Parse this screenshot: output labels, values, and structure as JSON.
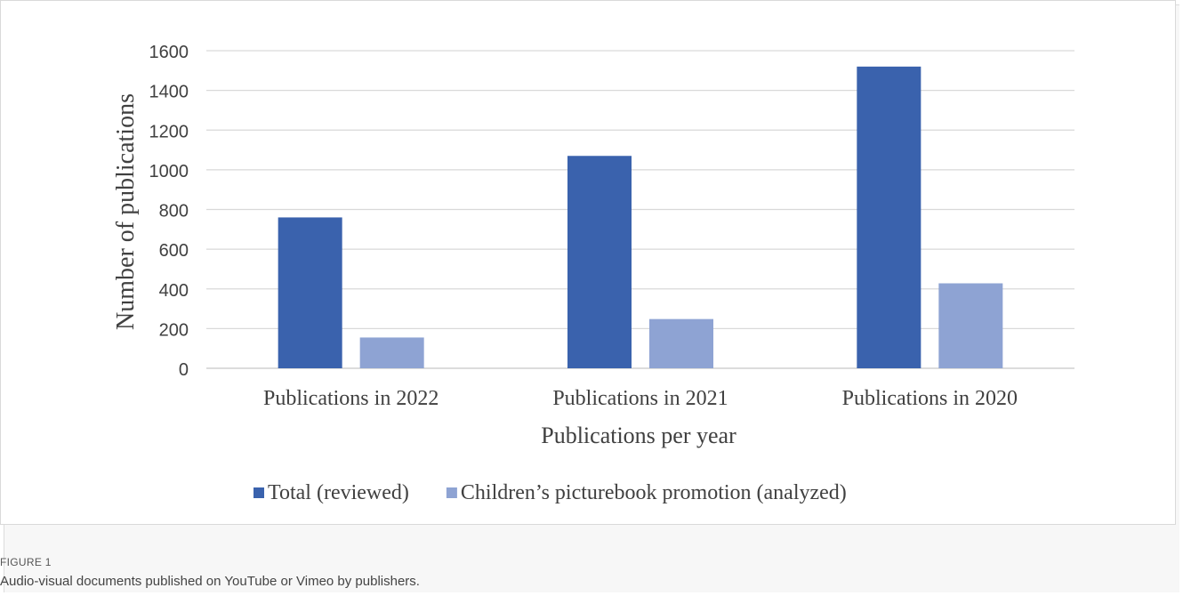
{
  "chart_data": {
    "type": "bar",
    "categories": [
      "Publications in 2022",
      "Publications in 2021",
      "Publications in 2020"
    ],
    "series": [
      {
        "name": "Total (reviewed)",
        "values": [
          760,
          1070,
          1520
        ],
        "color": "#3a62ad"
      },
      {
        "name": "Children’s picturebook promotion (analyzed)",
        "values": [
          155,
          248,
          428
        ],
        "color": "#8ea3d3"
      }
    ],
    "yticks": [
      0,
      200,
      400,
      600,
      800,
      1000,
      1200,
      1400,
      1600
    ],
    "ylim": [
      0,
      1600
    ],
    "xlabel": "Publications per year",
    "ylabel": "Number of publications",
    "grid": true,
    "legend_position": "bottom"
  },
  "caption": {
    "label": "FIGURE 1",
    "text": "Audio-visual documents published on YouTube or Vimeo by publishers."
  }
}
